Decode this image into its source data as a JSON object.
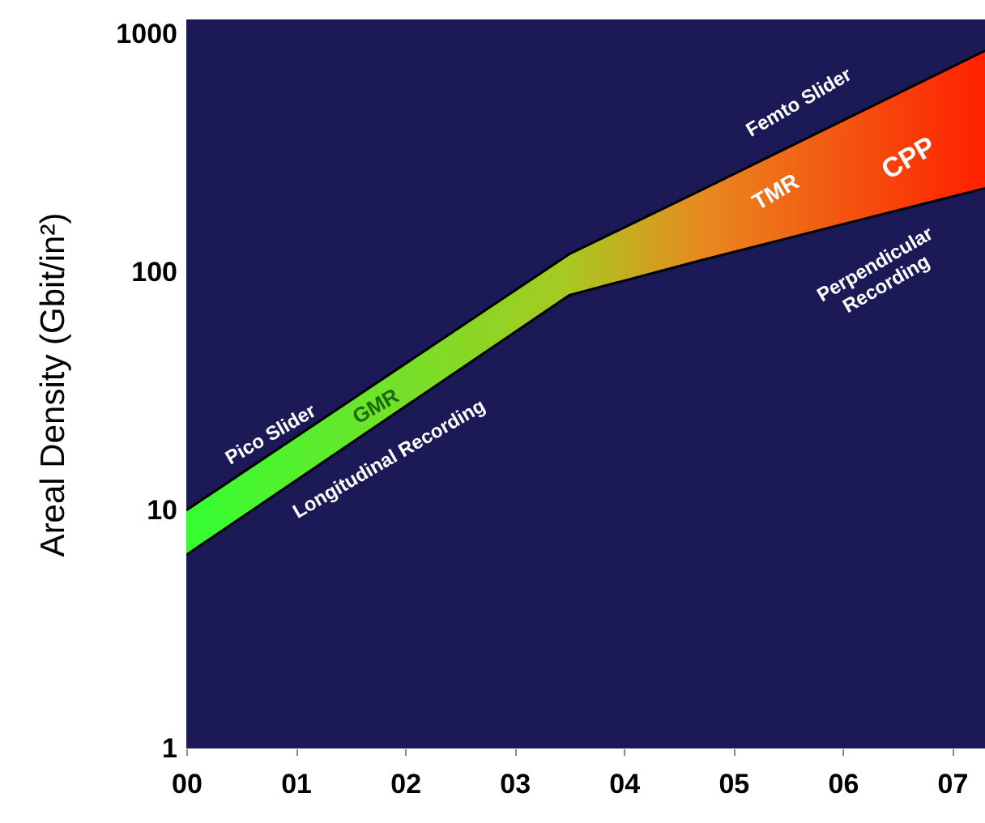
{
  "chart_data": {
    "type": "line",
    "ylabel": "Areal Density (Gbit/in²)",
    "log": "y",
    "xlim": [
      0,
      7.3
    ],
    "ylim": [
      1,
      1150
    ],
    "yticks": [
      1,
      10,
      100,
      1000
    ],
    "xticks": [
      {
        "value": 0,
        "label": "00"
      },
      {
        "value": 1,
        "label": "01"
      },
      {
        "value": 2,
        "label": "02"
      },
      {
        "value": 3,
        "label": "03"
      },
      {
        "value": 4,
        "label": "04"
      },
      {
        "value": 5,
        "label": "05"
      },
      {
        "value": 6,
        "label": "06"
      },
      {
        "value": 7,
        "label": "07"
      }
    ],
    "grid": false,
    "series": [
      {
        "x": [
          0,
          3.5,
          4.7,
          7.3
        ],
        "color": "#000000",
        "values": [
          10,
          119,
          220,
          850
        ],
        "lower": [
          6.5,
          80,
          112,
          225
        ],
        "upper": [
          10,
          119,
          220,
          850
        ],
        "colors": [
          "#33ff33",
          "#a8c820",
          "#e88a20",
          "#ff2000"
        ]
      },
      {
        "x": [
          0,
          3.5,
          4.7,
          7.3
        ],
        "color": "#000000",
        "values": [
          6.5,
          80,
          112,
          225
        ]
      }
    ],
    "annotations": [
      "Pico Slider",
      "GMR",
      "Longitudinal Recording",
      "Femto Slider",
      "TMR",
      "CPP",
      "Perpendicular\nRecording"
    ]
  }
}
